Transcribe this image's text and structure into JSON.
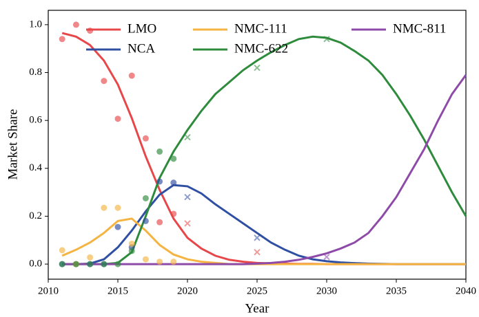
{
  "chart_data": {
    "type": "line",
    "xlabel": "Year",
    "ylabel": "Market Share",
    "xlim": [
      2010,
      2040
    ],
    "ylim": [
      -0.063,
      1.06
    ],
    "xticks": [
      2010,
      2015,
      2020,
      2025,
      2030,
      2035,
      2040
    ],
    "yticks": [
      {
        "value": 0,
        "label": "0.0"
      },
      {
        "value": 0.2,
        "label": "0.2"
      },
      {
        "value": 0.4,
        "label": "0.4"
      },
      {
        "value": 0.6,
        "label": "0.6"
      },
      {
        "value": 0.8,
        "label": "0.8"
      },
      {
        "value": 1,
        "label": "1.0"
      }
    ],
    "legend": "upper center",
    "x": [
      2011,
      2012,
      2013,
      2014,
      2015,
      2016,
      2017,
      2018,
      2019,
      2020,
      2021,
      2022,
      2023,
      2024,
      2025,
      2026,
      2027,
      2028,
      2029,
      2030,
      2031,
      2032,
      2033,
      2034,
      2035,
      2036,
      2037,
      2038,
      2039,
      2040
    ],
    "series": [
      {
        "name": "LMO",
        "color": "#e8474a",
        "values": [
          0.965,
          0.95,
          0.915,
          0.85,
          0.75,
          0.61,
          0.45,
          0.31,
          0.19,
          0.11,
          0.065,
          0.035,
          0.018,
          0.01,
          0.005,
          0.003,
          0.002,
          0.001,
          0.001,
          0,
          0,
          0,
          0,
          0,
          0,
          0,
          0,
          0,
          0,
          0
        ],
        "observed": {
          "x": [
            2011,
            2012,
            2013,
            2014,
            2015,
            2016,
            2017,
            2018,
            2019
          ],
          "values": [
            0.94,
            1.0,
            0.975,
            0.765,
            0.607,
            0.787,
            0.525,
            0.175,
            0.21
          ]
        },
        "projected": {
          "x": [
            2020,
            2025
          ],
          "values": [
            0.17,
            0.05
          ]
        }
      },
      {
        "name": "NCA",
        "color": "#2f4fa2",
        "values": [
          0,
          0,
          0.002,
          0.02,
          0.07,
          0.14,
          0.22,
          0.29,
          0.33,
          0.325,
          0.295,
          0.25,
          0.21,
          0.17,
          0.13,
          0.09,
          0.06,
          0.035,
          0.02,
          0.012,
          0.007,
          0.004,
          0.002,
          0.001,
          0,
          0,
          0,
          0,
          0,
          0
        ],
        "observed": {
          "x": [
            2011,
            2012,
            2013,
            2014,
            2015,
            2016,
            2017,
            2018,
            2019
          ],
          "values": [
            0,
            0,
            0,
            0,
            0.155,
            0.07,
            0.18,
            0.345,
            0.34
          ]
        },
        "projected": {
          "x": [
            2020,
            2025
          ],
          "values": [
            0.28,
            0.11
          ]
        }
      },
      {
        "name": "NMC-111",
        "color": "#f5b342",
        "values": [
          0.035,
          0.06,
          0.09,
          0.13,
          0.18,
          0.19,
          0.14,
          0.08,
          0.04,
          0.02,
          0.01,
          0.005,
          0,
          0,
          0,
          0,
          0,
          0,
          0,
          0,
          0,
          0,
          0,
          0,
          0,
          0,
          0,
          0,
          0,
          0
        ],
        "observed": {
          "x": [
            2011,
            2012,
            2013,
            2014,
            2015,
            2016,
            2017,
            2018,
            2019
          ],
          "values": [
            0.058,
            0,
            0.028,
            0.235,
            0.235,
            0.085,
            0.02,
            0.01,
            0.01
          ]
        },
        "projected": {
          "x": [],
          "values": []
        }
      },
      {
        "name": "NMC-622",
        "color": "#2e8b3c",
        "values": [
          0,
          0,
          0,
          0,
          0.005,
          0.05,
          0.2,
          0.36,
          0.47,
          0.56,
          0.64,
          0.71,
          0.76,
          0.81,
          0.85,
          0.885,
          0.915,
          0.94,
          0.95,
          0.945,
          0.925,
          0.89,
          0.85,
          0.79,
          0.71,
          0.62,
          0.52,
          0.41,
          0.3,
          0.2
        ],
        "observed": {
          "x": [
            2011,
            2012,
            2013,
            2014,
            2015,
            2016,
            2017,
            2018,
            2019
          ],
          "values": [
            0,
            0,
            0,
            0,
            0,
            0.055,
            0.275,
            0.47,
            0.44
          ]
        },
        "projected": {
          "x": [
            2020,
            2025,
            2030
          ],
          "values": [
            0.53,
            0.82,
            0.94
          ]
        }
      },
      {
        "name": "NMC-811",
        "color": "#8e4aa8",
        "values": [
          0,
          0,
          0,
          0,
          0,
          0,
          0,
          0,
          0,
          0,
          0,
          0,
          0,
          0,
          0.002,
          0.005,
          0.01,
          0.018,
          0.03,
          0.045,
          0.065,
          0.09,
          0.13,
          0.2,
          0.28,
          0.38,
          0.48,
          0.6,
          0.71,
          0.79
        ],
        "observed": {
          "x": [],
          "values": []
        },
        "projected": {
          "x": [
            2030
          ],
          "values": [
            0.03
          ]
        }
      }
    ]
  }
}
